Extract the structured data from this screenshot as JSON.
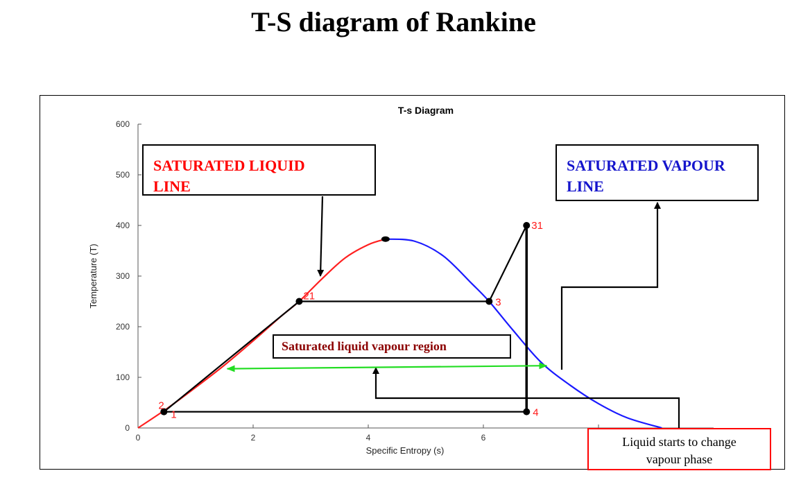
{
  "page_title": "T-S diagram of Rankine",
  "callouts": {
    "saturated_liquid": [
      "SATURATED LIQUID",
      "LINE"
    ],
    "saturated_vapour": [
      "SATURATED VAPOUR",
      "LINE"
    ],
    "region": "Saturated liquid vapour region",
    "phase_change": [
      "Liquid starts to change",
      "vapour phase"
    ]
  },
  "colors": {
    "liquid_line": "#ff2020",
    "vapour_line": "#1a1aff",
    "cycle": "#000000",
    "region_arrow": "#22dd22"
  },
  "chart_data": {
    "type": "line",
    "title": "T-s Diagram",
    "xlabel": "Specific Entropy (s)",
    "ylabel": "Temperature (T)",
    "xlim": [
      0,
      10
    ],
    "ylim": [
      0,
      600
    ],
    "xticks": [
      0,
      2,
      4,
      6
    ],
    "yticks": [
      0,
      100,
      200,
      300,
      400,
      500,
      600
    ],
    "grid": false,
    "series": [
      {
        "role": "saturated-liquid",
        "color": "#ff2020",
        "x": [
          0,
          0.5,
          1.0,
          1.5,
          2.0,
          2.5,
          2.8,
          3.2,
          3.6,
          4.0,
          4.3
        ],
        "y": [
          0,
          38,
          80,
          124,
          172,
          222,
          250,
          295,
          336,
          362,
          373
        ]
      },
      {
        "role": "saturated-vapour",
        "color": "#1a1aff",
        "x": [
          4.3,
          4.8,
          5.3,
          5.8,
          6.1,
          6.5,
          7.0,
          7.5,
          8.0,
          8.5,
          9.1
        ],
        "y": [
          373,
          369,
          340,
          285,
          250,
          195,
          130,
          85,
          48,
          20,
          0
        ]
      },
      {
        "role": "rankine-cycle",
        "color": "#000000",
        "x": [
          0.45,
          0.45,
          2.8,
          6.1,
          6.75,
          6.75,
          0.45
        ],
        "y": [
          32,
          32,
          250,
          250,
          400,
          32,
          32
        ]
      }
    ],
    "points": [
      {
        "label": "1",
        "x": 0.45,
        "y": 32
      },
      {
        "label": "2",
        "x": 0.45,
        "y": 32
      },
      {
        "label": "21",
        "x": 2.8,
        "y": 250
      },
      {
        "label": "3",
        "x": 6.1,
        "y": 250
      },
      {
        "label": "31",
        "x": 6.75,
        "y": 400
      },
      {
        "label": "4",
        "x": 6.75,
        "y": 32
      }
    ],
    "critical_point": {
      "x": 4.3,
      "y": 373
    },
    "region_arrow": {
      "x1": 1.55,
      "y1": 117,
      "x2": 7.1,
      "y2": 123
    }
  }
}
